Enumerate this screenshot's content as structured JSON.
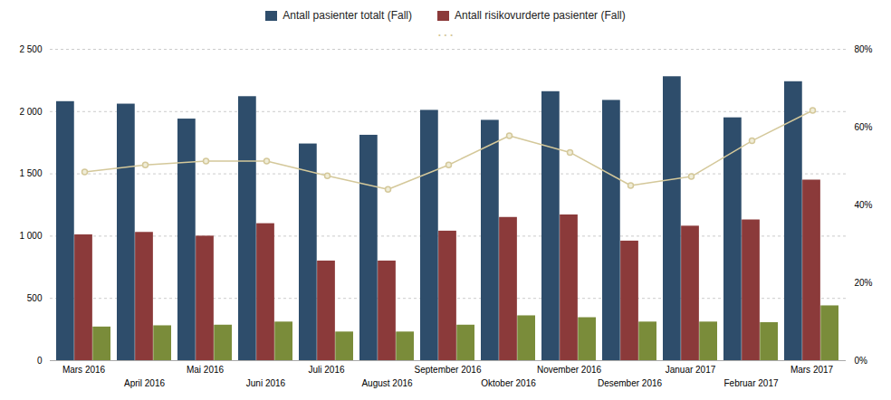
{
  "chart_data": {
    "type": "bar",
    "categories": [
      "Mars 2016",
      "April 2016",
      "Mai 2016",
      "Juni 2016",
      "Juli 2016",
      "August 2016",
      "September 2016",
      "Oktober 2016",
      "November 2016",
      "Desember 2016",
      "Januar 2017",
      "Februar 2017",
      "Mars 2017"
    ],
    "series": [
      {
        "name": "Antall pasienter totalt (Fall)",
        "color": "#2E4D6B",
        "values": [
          2080,
          2060,
          1940,
          2120,
          1740,
          1810,
          2010,
          1930,
          2160,
          2090,
          2280,
          1950,
          2240
        ]
      },
      {
        "name": "Antall risikovurderte pasienter (Fall)",
        "color": "#8B3A3A",
        "values": [
          1010,
          1030,
          1000,
          1100,
          800,
          800,
          1040,
          1150,
          1170,
          960,
          1080,
          1130,
          1450
        ]
      },
      {
        "color": "#7A8C3A",
        "values": [
          270,
          280,
          285,
          310,
          230,
          230,
          285,
          360,
          345,
          310,
          310,
          305,
          440
        ]
      },
      {
        "type": "line",
        "axis": "y2",
        "color": "#D4C89A",
        "marker": "circle",
        "line_style": "solid",
        "values": [
          0.485,
          0.503,
          0.513,
          0.513,
          0.475,
          0.44,
          0.503,
          0.578,
          0.535,
          0.45,
          0.473,
          0.565,
          0.643
        ]
      }
    ],
    "ylim": [
      0,
      2500
    ],
    "yticks": [
      0,
      500,
      {
        "value": 1000,
        "label": "1 000"
      },
      {
        "value": 1500,
        "label": "1 500"
      },
      {
        "value": 2000,
        "label": "2 000"
      },
      {
        "value": 2500,
        "label": "2 500"
      }
    ],
    "y2lim": [
      0,
      0.8
    ],
    "y2ticks": [
      {
        "value": 0,
        "label": "0%"
      },
      {
        "value": 0.2,
        "label": "20%"
      },
      {
        "value": 0.4,
        "label": "40%"
      },
      {
        "value": 0.6,
        "label": "60%"
      },
      {
        "value": 0.8,
        "label": "80%"
      }
    ],
    "grid": true,
    "legend": "top",
    "annotations": [
      ". . ."
    ]
  }
}
